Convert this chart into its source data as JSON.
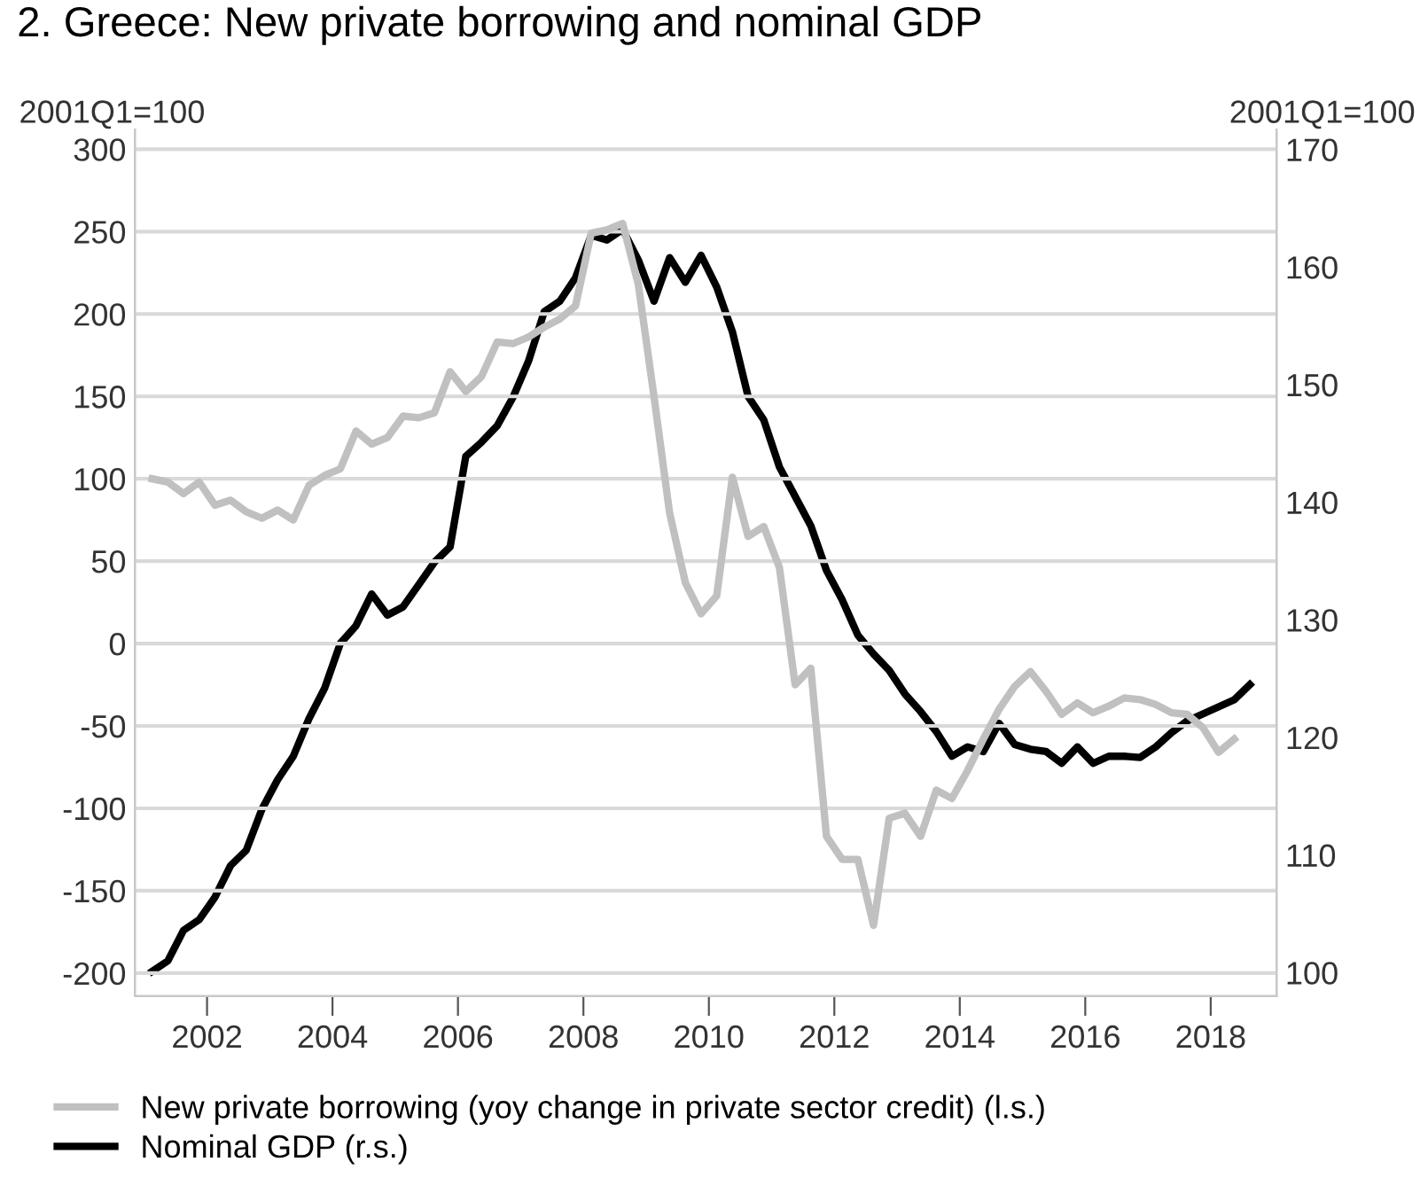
{
  "chart_data": {
    "type": "line",
    "title": "2. Greece: New private borrowing and nominal GDP",
    "ylabel": "2001Q1=100",
    "y2label": "2001Q1=100",
    "x": [
      2001.125,
      2001.375,
      2001.625,
      2001.875,
      2002.125,
      2002.375,
      2002.625,
      2002.875,
      2003.125,
      2003.375,
      2003.625,
      2003.875,
      2004.125,
      2004.375,
      2004.625,
      2004.875,
      2005.125,
      2005.375,
      2005.625,
      2005.875,
      2006.125,
      2006.375,
      2006.625,
      2006.875,
      2007.125,
      2007.375,
      2007.625,
      2007.875,
      2008.125,
      2008.375,
      2008.625,
      2008.875,
      2009.125,
      2009.375,
      2009.625,
      2009.875,
      2010.125,
      2010.375,
      2010.625,
      2010.875,
      2011.125,
      2011.375,
      2011.625,
      2011.875,
      2012.125,
      2012.375,
      2012.625,
      2012.875,
      2013.125,
      2013.375,
      2013.625,
      2013.875,
      2014.125,
      2014.375,
      2014.625,
      2014.875,
      2015.125,
      2015.375,
      2015.625,
      2015.875,
      2016.125,
      2016.375,
      2016.625,
      2016.875,
      2017.125,
      2017.375,
      2017.625,
      2017.875,
      2018.125,
      2018.375,
      2018.625
    ],
    "series": [
      {
        "name": "New private borrowing (yoy change in private sector credit) (l.s.)",
        "color": "#c0c0c0",
        "axis": "y",
        "values": [
          100,
          98,
          91,
          98,
          84,
          87,
          80,
          76,
          81,
          75,
          96,
          102,
          106,
          129,
          121,
          125,
          138,
          137,
          140,
          165,
          153,
          162,
          183,
          182,
          186,
          192,
          197,
          205,
          249,
          251,
          255,
          218,
          150,
          79,
          37,
          18,
          29,
          101,
          65,
          71,
          46,
          -25,
          -15,
          -117,
          -131,
          -131,
          -171,
          -106,
          -103,
          -117,
          -89,
          -94,
          -77,
          -58,
          -40,
          -26,
          -17,
          -29,
          -43,
          -36,
          -42,
          -38,
          -33,
          -34,
          -37,
          -42,
          -43,
          -51,
          -66,
          -58,
          null
        ]
      },
      {
        "name": "Nominal GDP (r.s.)",
        "color": "#000000",
        "axis": "y2",
        "values": [
          100.1,
          101,
          103.6,
          104.5,
          106.4,
          109.1,
          110.4,
          113.9,
          116.4,
          118.4,
          121.6,
          124.2,
          128.0,
          129.5,
          132.2,
          130.4,
          131.1,
          133.0,
          134.9,
          136.2,
          143.9,
          145.1,
          146.5,
          148.9,
          152.0,
          156.2,
          157.1,
          159.1,
          162.7,
          162.3,
          163.2,
          160.6,
          157.1,
          160.8,
          158.7,
          161.0,
          158.3,
          154.5,
          149.0,
          147.0,
          143.0,
          140.5,
          138.0,
          134.2,
          131.7,
          128.7,
          127.1,
          125.7,
          123.7,
          122.2,
          120.5,
          118.4,
          119.2,
          118.8,
          121.2,
          119.4,
          119.0,
          118.8,
          117.8,
          119.2,
          117.8,
          118.4,
          118.4,
          118.3,
          119.2,
          120.4,
          121.4,
          122.0,
          122.6,
          123.2,
          124.5
        ]
      }
    ],
    "xlim": [
      2000.85,
      2019.05
    ],
    "xticks": [
      2002,
      2004,
      2006,
      2008,
      2010,
      2012,
      2014,
      2016,
      2018
    ],
    "ylim": [
      -214,
      312
    ],
    "yticks": [
      -200,
      -150,
      -100,
      -50,
      0,
      50,
      100,
      150,
      200,
      250,
      300
    ],
    "y2lim": [
      98.0,
      171.7
    ],
    "y2ticks": [
      100,
      110,
      120,
      130,
      140,
      150,
      160,
      170
    ],
    "grid": "y",
    "legend": "bottom",
    "marker": "none",
    "line_style": "solid"
  }
}
